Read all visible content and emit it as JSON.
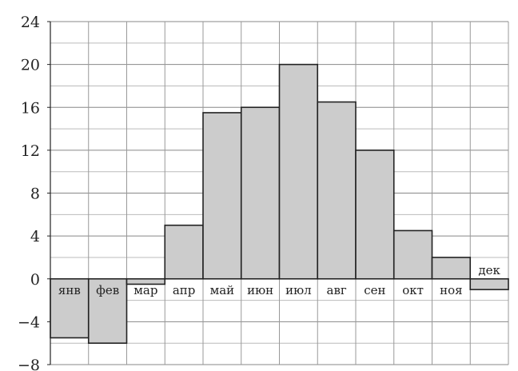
{
  "chart_data": {
    "type": "bar",
    "title": "",
    "xlabel": "",
    "ylabel": "",
    "categories": [
      "янв",
      "фев",
      "мар",
      "апр",
      "май",
      "июн",
      "июл",
      "авг",
      "сен",
      "окт",
      "ноя",
      "дек"
    ],
    "category_labels": [
      "янв",
      "фев",
      "мар",
      "апр",
      "май",
      "июн",
      "июл",
      "авг",
      "сен",
      "окт",
      "ноя",
      "дек"
    ],
    "values": [
      -5.5,
      -6,
      -0.5,
      5,
      15.5,
      16,
      20,
      16.5,
      12,
      4.5,
      2,
      -1
    ],
    "ylim": [
      -8,
      24
    ],
    "yticks": [
      24,
      20,
      16,
      12,
      8,
      4,
      0,
      -4,
      -8
    ],
    "ytick_labels": [
      "24",
      "20",
      "16",
      "12",
      "8",
      "4",
      "0",
      "−4",
      "−8"
    ],
    "grid": true,
    "grid_step": 2,
    "bar_color": "#cccccc",
    "edge_color": "#222222"
  }
}
